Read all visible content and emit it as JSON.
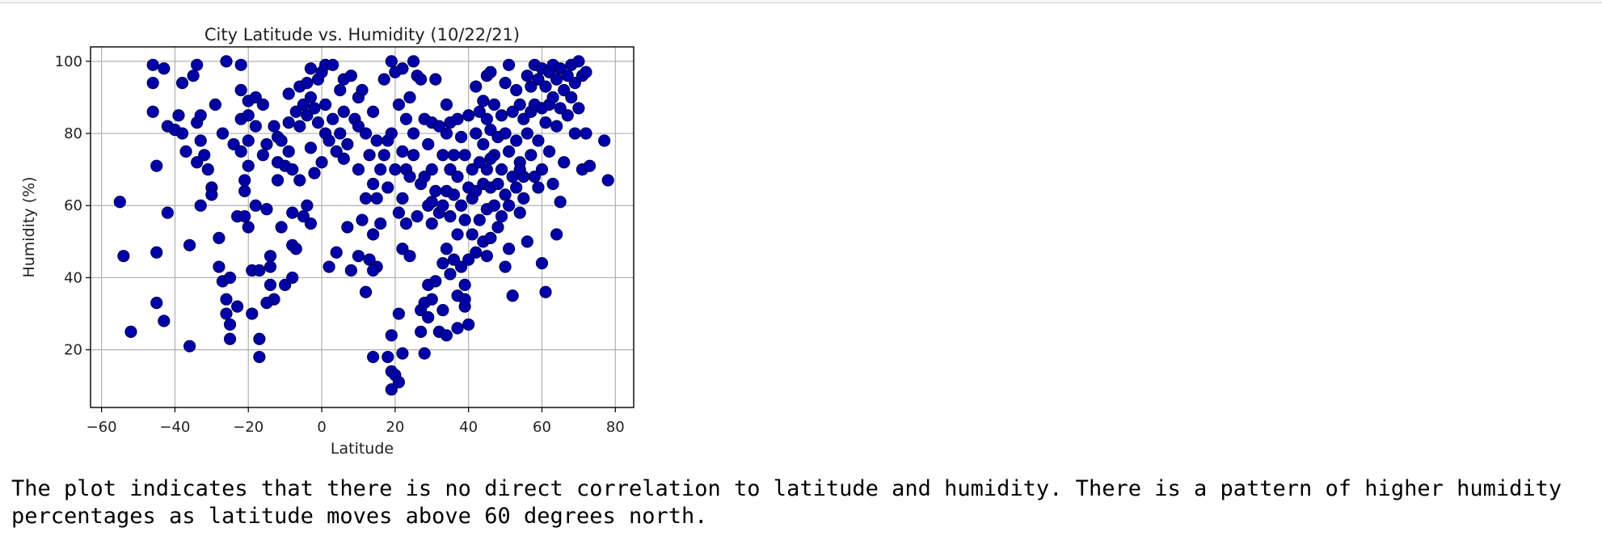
{
  "chart_data": {
    "type": "scatter",
    "title": "City Latitude vs. Humidity (10/22/21)",
    "xlabel": "Latitude",
    "ylabel": "Humidity (%)",
    "xlim": [
      -63,
      85
    ],
    "ylim": [
      4,
      104
    ],
    "xticks": [
      -60,
      -40,
      -20,
      0,
      20,
      40,
      60,
      80
    ],
    "yticks": [
      20,
      40,
      60,
      80,
      100
    ],
    "grid": true,
    "marker_color": "#0000a8",
    "points": [
      [
        -55,
        61
      ],
      [
        -54,
        46
      ],
      [
        -52,
        25
      ],
      [
        -46,
        99
      ],
      [
        -46,
        94
      ],
      [
        -46,
        86
      ],
      [
        -45,
        71
      ],
      [
        -45,
        47
      ],
      [
        -45,
        33
      ],
      [
        -43,
        28
      ],
      [
        -43,
        98
      ],
      [
        -42,
        82
      ],
      [
        -42,
        58
      ],
      [
        -40,
        81
      ],
      [
        -39,
        85
      ],
      [
        -38,
        94
      ],
      [
        -38,
        80
      ],
      [
        -37,
        75
      ],
      [
        -36,
        49
      ],
      [
        -35,
        96
      ],
      [
        -34,
        99
      ],
      [
        -34,
        83
      ],
      [
        -34,
        72
      ],
      [
        -33,
        85
      ],
      [
        -33,
        78
      ],
      [
        -33,
        60
      ],
      [
        -32,
        74
      ],
      [
        -31,
        70
      ],
      [
        -30,
        65
      ],
      [
        -30,
        63
      ],
      [
        -29,
        88
      ],
      [
        -28,
        51
      ],
      [
        -28,
        43
      ],
      [
        -27,
        39
      ],
      [
        -27,
        80
      ],
      [
        -26,
        100
      ],
      [
        -26,
        34
      ],
      [
        -26,
        30
      ],
      [
        -25,
        40
      ],
      [
        -25,
        27
      ],
      [
        -25,
        23
      ],
      [
        -24,
        77
      ],
      [
        -23,
        57
      ],
      [
        -23,
        32
      ],
      [
        -22,
        99
      ],
      [
        -22,
        92
      ],
      [
        -22,
        84
      ],
      [
        -22,
        75
      ],
      [
        -21,
        67
      ],
      [
        -21,
        64
      ],
      [
        -21,
        57
      ],
      [
        -20,
        89
      ],
      [
        -20,
        85
      ],
      [
        -20,
        78
      ],
      [
        -20,
        71
      ],
      [
        -20,
        54
      ],
      [
        -19,
        42
      ],
      [
        -19,
        30
      ],
      [
        -18,
        90
      ],
      [
        -18,
        82
      ],
      [
        -18,
        60
      ],
      [
        -17,
        42
      ],
      [
        -17,
        23
      ],
      [
        -17,
        18
      ],
      [
        -16,
        88
      ],
      [
        -16,
        74
      ],
      [
        -15,
        77
      ],
      [
        -15,
        59
      ],
      [
        -14,
        46
      ],
      [
        -14,
        43
      ],
      [
        -14,
        38
      ],
      [
        -13,
        34
      ],
      [
        -13,
        82
      ],
      [
        -12,
        79
      ],
      [
        -12,
        72
      ],
      [
        -12,
        67
      ],
      [
        -11,
        78
      ],
      [
        -11,
        54
      ],
      [
        -10,
        71
      ],
      [
        -10,
        38
      ],
      [
        -9,
        91
      ],
      [
        -9,
        83
      ],
      [
        -9,
        75
      ],
      [
        -8,
        70
      ],
      [
        -8,
        58
      ],
      [
        -8,
        49
      ],
      [
        -8,
        40
      ],
      [
        -7,
        86
      ],
      [
        -7,
        48
      ],
      [
        -6,
        93
      ],
      [
        -6,
        82
      ],
      [
        -6,
        67
      ],
      [
        -5,
        88
      ],
      [
        -5,
        57
      ],
      [
        -4,
        94
      ],
      [
        -4,
        85
      ],
      [
        -4,
        60
      ],
      [
        -3,
        98
      ],
      [
        -3,
        90
      ],
      [
        -3,
        76
      ],
      [
        -3,
        55
      ],
      [
        -2,
        87
      ],
      [
        -2,
        69
      ],
      [
        -1,
        95
      ],
      [
        -1,
        83
      ],
      [
        0,
        97
      ],
      [
        0,
        72
      ],
      [
        1,
        99
      ],
      [
        1,
        88
      ],
      [
        1,
        80
      ],
      [
        2,
        78
      ],
      [
        2,
        43
      ],
      [
        3,
        99
      ],
      [
        3,
        84
      ],
      [
        4,
        75
      ],
      [
        4,
        47
      ],
      [
        5,
        92
      ],
      [
        5,
        80
      ],
      [
        6,
        95
      ],
      [
        6,
        86
      ],
      [
        6,
        73
      ],
      [
        7,
        77
      ],
      [
        7,
        54
      ],
      [
        8,
        96
      ],
      [
        8,
        42
      ],
      [
        9,
        84
      ],
      [
        10,
        90
      ],
      [
        10,
        70
      ],
      [
        10,
        46
      ],
      [
        11,
        92
      ],
      [
        11,
        56
      ],
      [
        12,
        80
      ],
      [
        12,
        62
      ],
      [
        12,
        36
      ],
      [
        13,
        74
      ],
      [
        13,
        45
      ],
      [
        14,
        86
      ],
      [
        14,
        66
      ],
      [
        14,
        52
      ],
      [
        14,
        18
      ],
      [
        15,
        78
      ],
      [
        15,
        62
      ],
      [
        15,
        43
      ],
      [
        16,
        70
      ],
      [
        16,
        55
      ],
      [
        17,
        95
      ],
      [
        17,
        74
      ],
      [
        18,
        78
      ],
      [
        18,
        65
      ],
      [
        18,
        18
      ],
      [
        19,
        100
      ],
      [
        19,
        80
      ],
      [
        19,
        24
      ],
      [
        19,
        14
      ],
      [
        19,
        9
      ],
      [
        20,
        97
      ],
      [
        20,
        70
      ],
      [
        20,
        13
      ],
      [
        21,
        88
      ],
      [
        21,
        58
      ],
      [
        21,
        30
      ],
      [
        21,
        11
      ],
      [
        22,
        98
      ],
      [
        22,
        75
      ],
      [
        22,
        62
      ],
      [
        22,
        48
      ],
      [
        22,
        19
      ],
      [
        23,
        84
      ],
      [
        23,
        70
      ],
      [
        23,
        55
      ],
      [
        24,
        90
      ],
      [
        24,
        68
      ],
      [
        24,
        46
      ],
      [
        25,
        100
      ],
      [
        25,
        80
      ],
      [
        25,
        74
      ],
      [
        26,
        96
      ],
      [
        26,
        57
      ],
      [
        27,
        95
      ],
      [
        27,
        66
      ],
      [
        27,
        31
      ],
      [
        27,
        25
      ],
      [
        28,
        84
      ],
      [
        28,
        68
      ],
      [
        28,
        33
      ],
      [
        28,
        19
      ],
      [
        29,
        77
      ],
      [
        29,
        60
      ],
      [
        29,
        38
      ],
      [
        29,
        29
      ],
      [
        30,
        83
      ],
      [
        30,
        70
      ],
      [
        30,
        55
      ],
      [
        30,
        34
      ],
      [
        31,
        95
      ],
      [
        31,
        64
      ],
      [
        31,
        39
      ],
      [
        32,
        82
      ],
      [
        32,
        58
      ],
      [
        32,
        25
      ],
      [
        33,
        74
      ],
      [
        33,
        60
      ],
      [
        33,
        44
      ],
      [
        33,
        31
      ],
      [
        34,
        88
      ],
      [
        34,
        80
      ],
      [
        34,
        64
      ],
      [
        34,
        48
      ],
      [
        34,
        24
      ],
      [
        35,
        83
      ],
      [
        35,
        70
      ],
      [
        35,
        57
      ],
      [
        35,
        41
      ],
      [
        36,
        74
      ],
      [
        36,
        63
      ],
      [
        36,
        45
      ],
      [
        37,
        84
      ],
      [
        37,
        68
      ],
      [
        37,
        52
      ],
      [
        37,
        35
      ],
      [
        37,
        26
      ],
      [
        38,
        79
      ],
      [
        38,
        60
      ],
      [
        38,
        43
      ],
      [
        39,
        74
      ],
      [
        39,
        56
      ],
      [
        39,
        32
      ],
      [
        40,
        85
      ],
      [
        40,
        65
      ],
      [
        40,
        45
      ],
      [
        40,
        27
      ],
      [
        41,
        70
      ],
      [
        41,
        62
      ],
      [
        41,
        52
      ],
      [
        42,
        93
      ],
      [
        42,
        80
      ],
      [
        42,
        64
      ],
      [
        42,
        47
      ],
      [
        43,
        86
      ],
      [
        43,
        72
      ],
      [
        43,
        56
      ],
      [
        44,
        89
      ],
      [
        44,
        77
      ],
      [
        44,
        66
      ],
      [
        44,
        50
      ],
      [
        45,
        96
      ],
      [
        45,
        84
      ],
      [
        45,
        70
      ],
      [
        45,
        59
      ],
      [
        45,
        46
      ],
      [
        46,
        97
      ],
      [
        46,
        81
      ],
      [
        46,
        65
      ],
      [
        46,
        51
      ],
      [
        47,
        88
      ],
      [
        47,
        74
      ],
      [
        47,
        60
      ],
      [
        48,
        79
      ],
      [
        48,
        66
      ],
      [
        48,
        54
      ],
      [
        49,
        85
      ],
      [
        49,
        70
      ],
      [
        49,
        57
      ],
      [
        50,
        94
      ],
      [
        50,
        80
      ],
      [
        50,
        63
      ],
      [
        50,
        43
      ],
      [
        51,
        99
      ],
      [
        51,
        75
      ],
      [
        51,
        60
      ],
      [
        51,
        48
      ],
      [
        52,
        86
      ],
      [
        52,
        68
      ],
      [
        52,
        35
      ],
      [
        53,
        92
      ],
      [
        53,
        78
      ],
      [
        53,
        65
      ],
      [
        54,
        88
      ],
      [
        54,
        72
      ],
      [
        54,
        58
      ],
      [
        55,
        84
      ],
      [
        55,
        68
      ],
      [
        55,
        62
      ],
      [
        56,
        96
      ],
      [
        56,
        80
      ],
      [
        56,
        50
      ],
      [
        57,
        93
      ],
      [
        57,
        86
      ],
      [
        57,
        74
      ],
      [
        58,
        99
      ],
      [
        58,
        88
      ],
      [
        58,
        68
      ],
      [
        59,
        95
      ],
      [
        59,
        78
      ],
      [
        59,
        65
      ],
      [
        60,
        98
      ],
      [
        60,
        87
      ],
      [
        60,
        70
      ],
      [
        60,
        44
      ],
      [
        61,
        93
      ],
      [
        61,
        83
      ],
      [
        61,
        36
      ],
      [
        62,
        97
      ],
      [
        62,
        88
      ],
      [
        62,
        75
      ],
      [
        63,
        99
      ],
      [
        63,
        90
      ],
      [
        63,
        66
      ],
      [
        64,
        95
      ],
      [
        64,
        82
      ],
      [
        64,
        52
      ],
      [
        65,
        98
      ],
      [
        65,
        87
      ],
      [
        65,
        61
      ],
      [
        66,
        92
      ],
      [
        66,
        72
      ],
      [
        67,
        96
      ],
      [
        67,
        85
      ],
      [
        68,
        99
      ],
      [
        68,
        90
      ],
      [
        69,
        94
      ],
      [
        69,
        80
      ],
      [
        70,
        100
      ],
      [
        70,
        87
      ],
      [
        71,
        96
      ],
      [
        71,
        70
      ],
      [
        72,
        97
      ],
      [
        72,
        80
      ],
      [
        73,
        71
      ],
      [
        77,
        78
      ],
      [
        78,
        67
      ],
      [
        39,
        38
      ],
      [
        39,
        34
      ],
      [
        -36,
        21
      ],
      [
        -15,
        33
      ],
      [
        14,
        42
      ],
      [
        54,
        70
      ],
      [
        10,
        82
      ],
      [
        30,
        61
      ],
      [
        46,
        73
      ]
    ]
  },
  "caption": {
    "text": "The plot indicates that there is no direct correlation to latitude and humidity. There is a pattern of higher humidity percentages as latitude moves above 60 degrees north."
  }
}
